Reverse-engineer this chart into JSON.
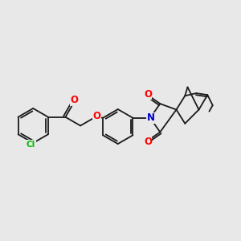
{
  "bg_color": "#e8e8e8",
  "bond_color": "#1a1a1a",
  "bond_width": 1.3,
  "atom_colors": {
    "O": "#ff0000",
    "N": "#0000cc",
    "Cl": "#00bb00",
    "C": "#1a1a1a"
  }
}
